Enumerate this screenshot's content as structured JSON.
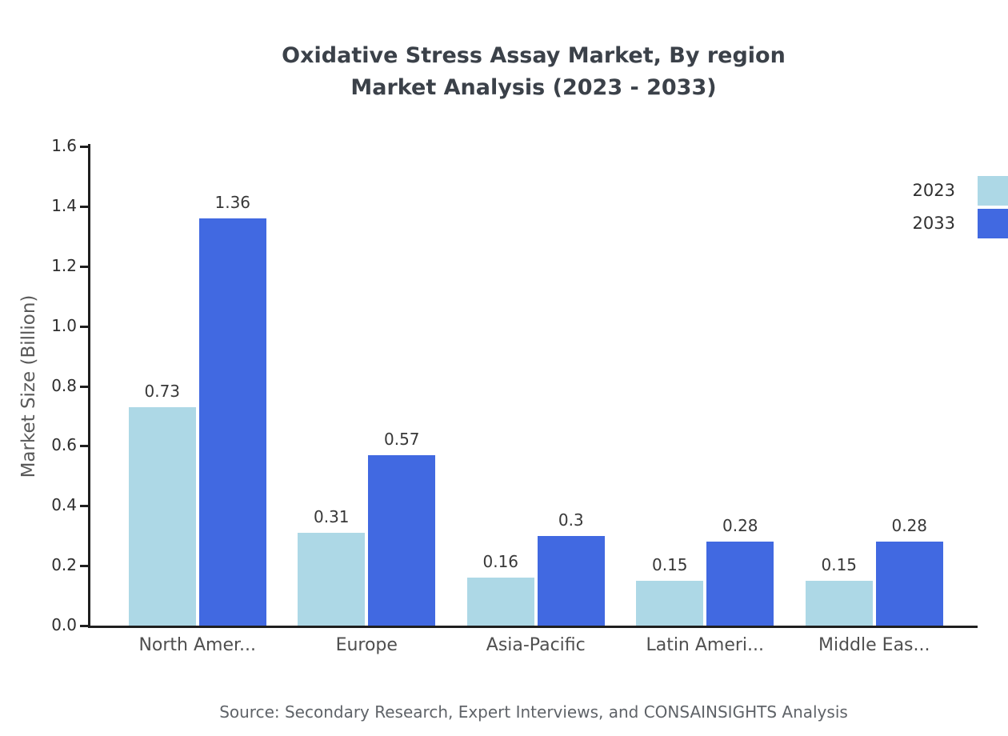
{
  "title": {
    "line1": "Oxidative Stress Assay Market, By region",
    "line2": "Market Analysis (2023 - 2033)"
  },
  "chart_data": {
    "type": "bar",
    "title": "Oxidative Stress Assay Market, By region Market Analysis (2023 - 2033)",
    "categories": [
      "North Amer...",
      "Europe",
      "Asia-Pacific",
      "Latin Ameri...",
      "Middle Eas..."
    ],
    "series": [
      {
        "name": "2023",
        "color": "#add8e6",
        "values": [
          0.73,
          0.31,
          0.16,
          0.15,
          0.15
        ],
        "labels": [
          "0.73",
          "0.31",
          "0.16",
          "0.15",
          "0.15"
        ]
      },
      {
        "name": "2033",
        "color": "#4169e1",
        "values": [
          1.36,
          0.57,
          0.3,
          0.28,
          0.28
        ],
        "labels": [
          "1.36",
          "0.57",
          "0.3",
          "0.28",
          "0.28"
        ]
      }
    ],
    "xlabel": "",
    "ylabel": "Market Size (Billion)",
    "ylim": [
      0,
      1.6
    ],
    "yticks": [
      "0.0",
      "0.2",
      "0.4",
      "0.6",
      "0.8",
      "1.0",
      "1.2",
      "1.4",
      "1.6"
    ],
    "grid": false,
    "legend_position": "top-right"
  },
  "source": "Source: Secondary Research, Expert Interviews, and CONSAINSIGHTS Analysis"
}
